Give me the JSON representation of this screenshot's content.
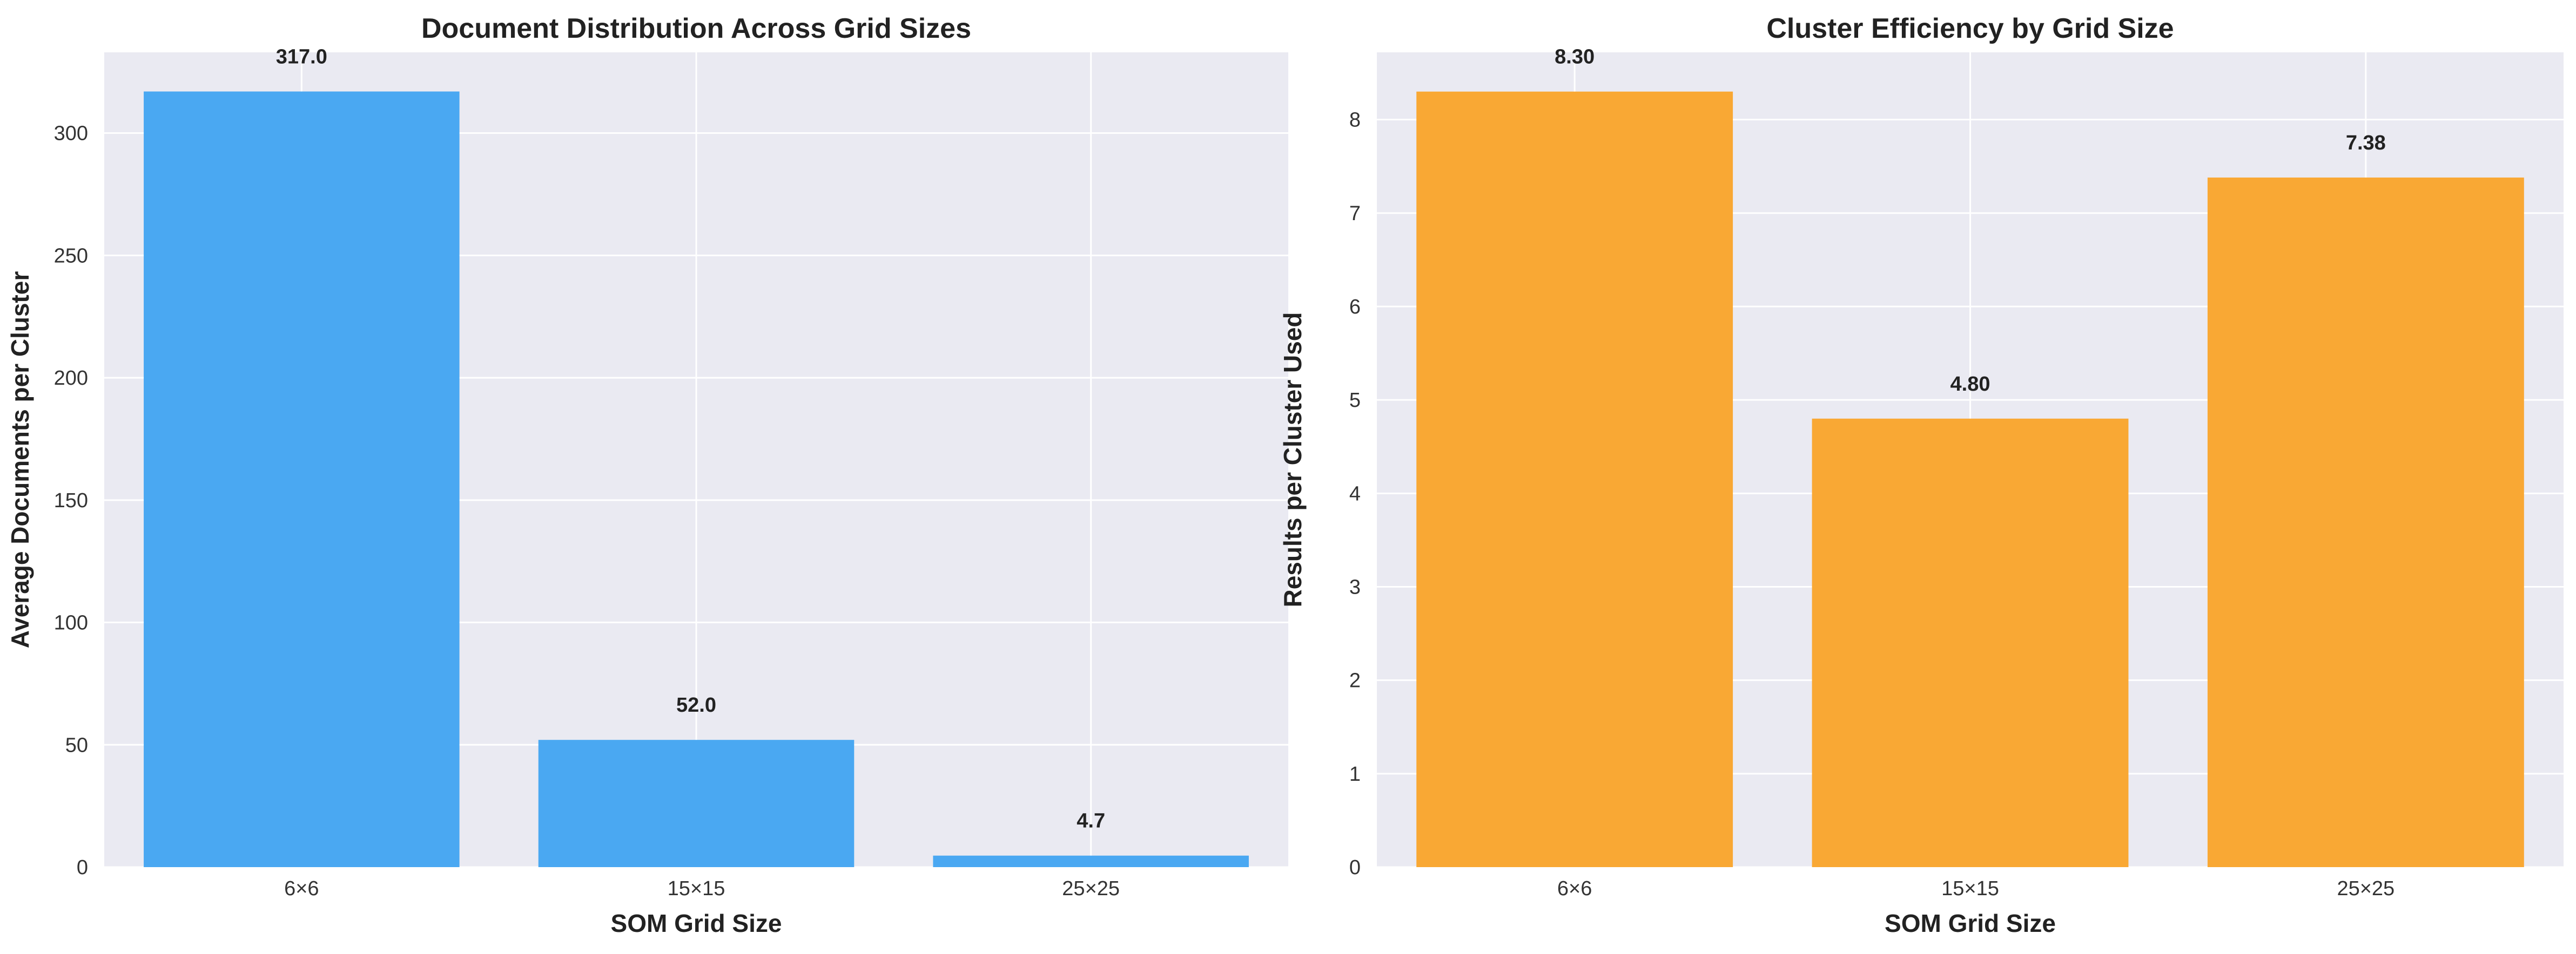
{
  "chart_data": [
    {
      "type": "bar",
      "title": "Document Distribution Across Grid Sizes",
      "xlabel": "SOM Grid Size",
      "ylabel": "Average Documents per Cluster",
      "categories": [
        "6×6",
        "15×15",
        "25×25"
      ],
      "values": [
        317.0,
        52.0,
        4.7
      ],
      "value_labels": [
        "317.0",
        "52.0",
        "4.7"
      ],
      "ylim": [
        0,
        333
      ],
      "yticks": [
        0,
        50,
        100,
        150,
        200,
        250,
        300
      ],
      "ytick_labels": [
        "0",
        "50",
        "100",
        "150",
        "200",
        "250",
        "300"
      ],
      "color": "#4AA8F2",
      "grid": true
    },
    {
      "type": "bar",
      "title": "Cluster Efficiency by Grid Size",
      "xlabel": "SOM Grid Size",
      "ylabel": "Results per Cluster Used",
      "categories": [
        "6×6",
        "15×15",
        "25×25"
      ],
      "values": [
        8.3,
        4.8,
        7.38
      ],
      "value_labels": [
        "8.30",
        "4.80",
        "7.38"
      ],
      "ylim": [
        0,
        8.72
      ],
      "yticks": [
        0,
        1,
        2,
        3,
        4,
        5,
        6,
        7,
        8
      ],
      "ytick_labels": [
        "0",
        "1",
        "2",
        "3",
        "4",
        "5",
        "6",
        "7",
        "8"
      ],
      "color": "#F9A834",
      "grid": true
    }
  ],
  "style": {
    "plot_background": "#EAEAF2",
    "grid_color": "#FFFFFF"
  }
}
